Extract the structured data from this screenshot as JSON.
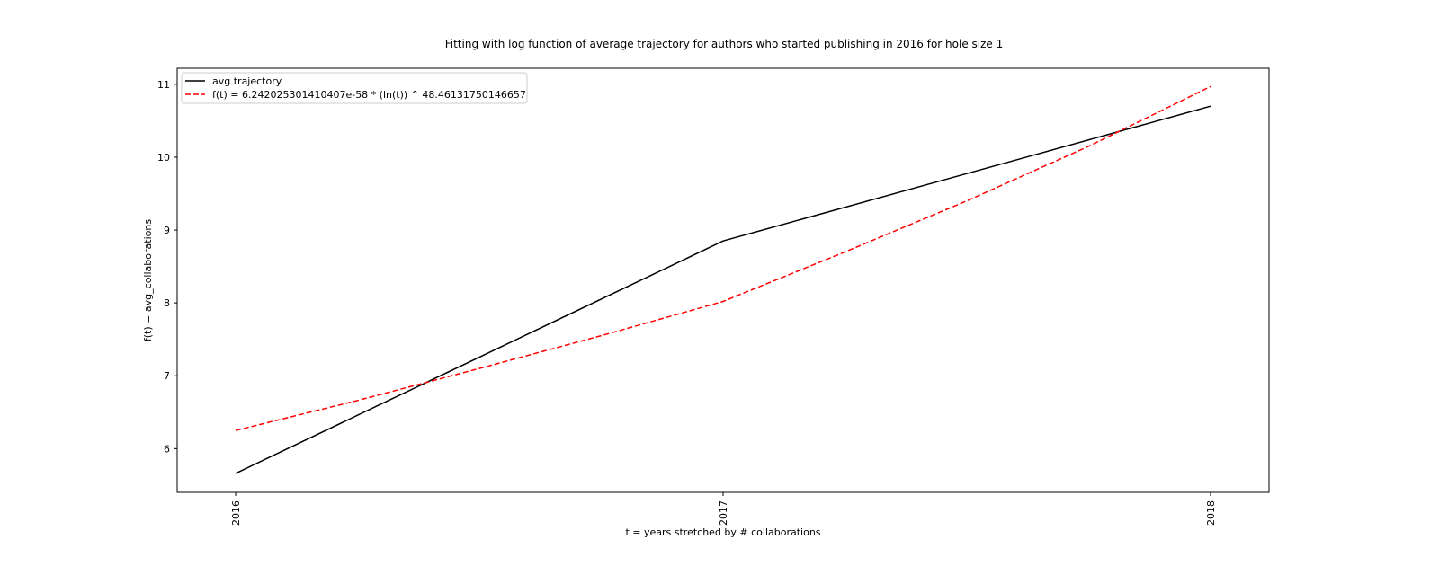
{
  "chart_data": {
    "type": "line",
    "title": "Fitting with log function of average trajectory for authors who started publishing in 2016 for hole size 1",
    "xlabel": "t = years stretched by # collaborations",
    "ylabel": "f(t) = avg_collaborations",
    "x_ticks": [
      {
        "value": 2016,
        "label": "2016"
      },
      {
        "value": 2017,
        "label": "2017"
      },
      {
        "value": 2018,
        "label": "2018"
      }
    ],
    "y_ticks": [
      {
        "value": 6,
        "label": "6"
      },
      {
        "value": 7,
        "label": "7"
      },
      {
        "value": 8,
        "label": "8"
      },
      {
        "value": 9,
        "label": "9"
      },
      {
        "value": 10,
        "label": "10"
      },
      {
        "value": 11,
        "label": "11"
      }
    ],
    "xlim": [
      2015.88,
      2018.12
    ],
    "ylim": [
      5.4,
      11.22
    ],
    "grid": false,
    "legend_position": "upper left",
    "series": [
      {
        "name": "avg trajectory",
        "color": "#000000",
        "style": "solid",
        "x": [
          2016,
          2017,
          2018
        ],
        "y": [
          5.66,
          8.85,
          10.7
        ]
      },
      {
        "name": "f(t) = 6.242025301410407e-58 * (ln(t)) ^ 48.46131750146657",
        "color": "#ff0000",
        "style": "dashed",
        "x": [
          2016,
          2016.25,
          2016.5,
          2016.75,
          2017,
          2017.25,
          2017.5,
          2017.75,
          2018
        ],
        "y": [
          6.25,
          6.66,
          7.1,
          7.55,
          8.02,
          8.7,
          9.4,
          10.15,
          10.97
        ]
      }
    ]
  }
}
